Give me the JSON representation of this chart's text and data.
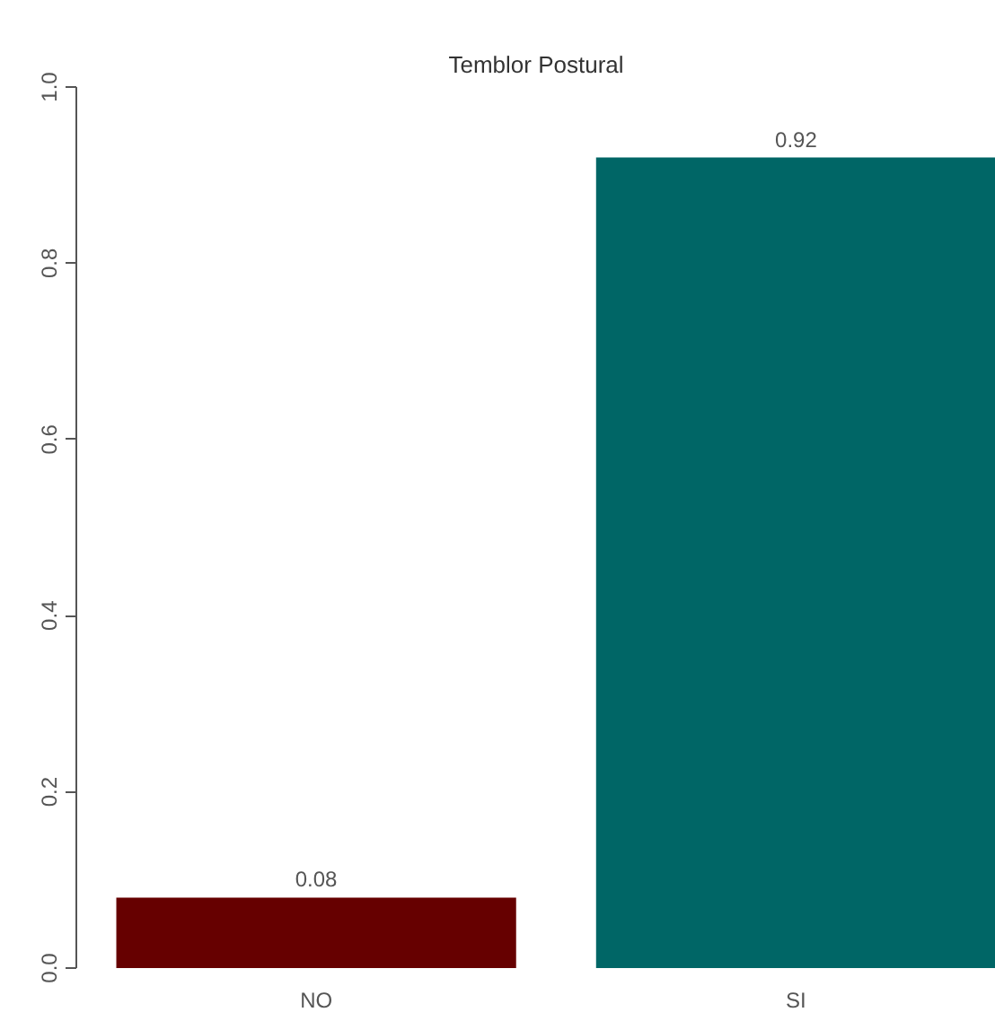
{
  "chart_data": {
    "type": "bar",
    "title": "Temblor Postural",
    "categories": [
      "NO",
      "SI"
    ],
    "values": [
      0.08,
      0.92
    ],
    "colors": [
      "#660000",
      "#006666"
    ],
    "ylim": [
      0,
      1
    ],
    "yticks": [
      {
        "value": 0,
        "label": "0.0"
      },
      0.2,
      0.4,
      0.6,
      0.8,
      {
        "value": 1,
        "label": "1.0"
      }
    ],
    "data_labels": true,
    "grid": false
  }
}
